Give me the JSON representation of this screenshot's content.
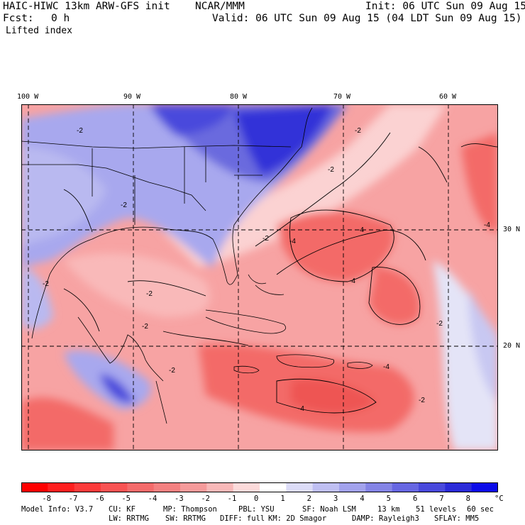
{
  "header": {
    "model": "HAIC-HIWC 13km ARW-GFS init",
    "org": "NCAR/MMM",
    "init": "Init: 06 UTC Sun 09 Aug 15",
    "fcst_label": "Fcst:",
    "fcst_value": "0 h",
    "valid": "Valid: 06 UTC Sun 09 Aug 15 (04 LDT Sun 09 Aug 15)",
    "field": "Lifted index"
  },
  "map": {
    "lon_labels": [
      "100 W",
      "90 W",
      "80 W",
      "70 W",
      "60 W"
    ],
    "lat_labels": [
      "30 N",
      "20 N"
    ],
    "contour_labels": [
      "-2",
      "-4"
    ],
    "colors": {
      "deep_red": "#ee3330",
      "red": "#f36a68",
      "light_red": "#f7a3a3",
      "pale_red": "#fbd2d2",
      "white": "#ffffff",
      "pale_blue": "#d2d2f8",
      "light_blue": "#a8a8ee",
      "blue": "#6b6bde",
      "deep_blue": "#1c1ce0"
    }
  },
  "colorbar": {
    "labels": [
      "-8",
      "-7",
      "-6",
      "-5",
      "-4",
      "-3",
      "-2",
      "-1",
      "0",
      "1",
      "2",
      "3",
      "4",
      "5",
      "6",
      "7",
      "8"
    ],
    "unit": "°C",
    "colors": [
      "#ff0000",
      "#ff1e1e",
      "#fc3a3a",
      "#f85252",
      "#f46a6a",
      "#f38080",
      "#f59a9a",
      "#f8b8b8",
      "#fcdada",
      "#ffffff",
      "#dcdcf7",
      "#bfbff2",
      "#a2a2ec",
      "#8484e6",
      "#6666e2",
      "#4848dc",
      "#2a2ad8",
      "#0a0ae8"
    ]
  },
  "model_info": {
    "line1": [
      "Model Info: V3.7",
      "CU: KF",
      "MP: Thompson",
      "PBL: YSU",
      "SF: Noah LSM",
      "13 km",
      "51 levels",
      "60 sec"
    ],
    "line2": [
      "LW: RRTMG",
      "SW: RRTMG",
      "DIFF: full",
      "KM: 2D Smagor",
      "DAMP: Rayleigh3",
      "SFLAY: MM5"
    ]
  }
}
